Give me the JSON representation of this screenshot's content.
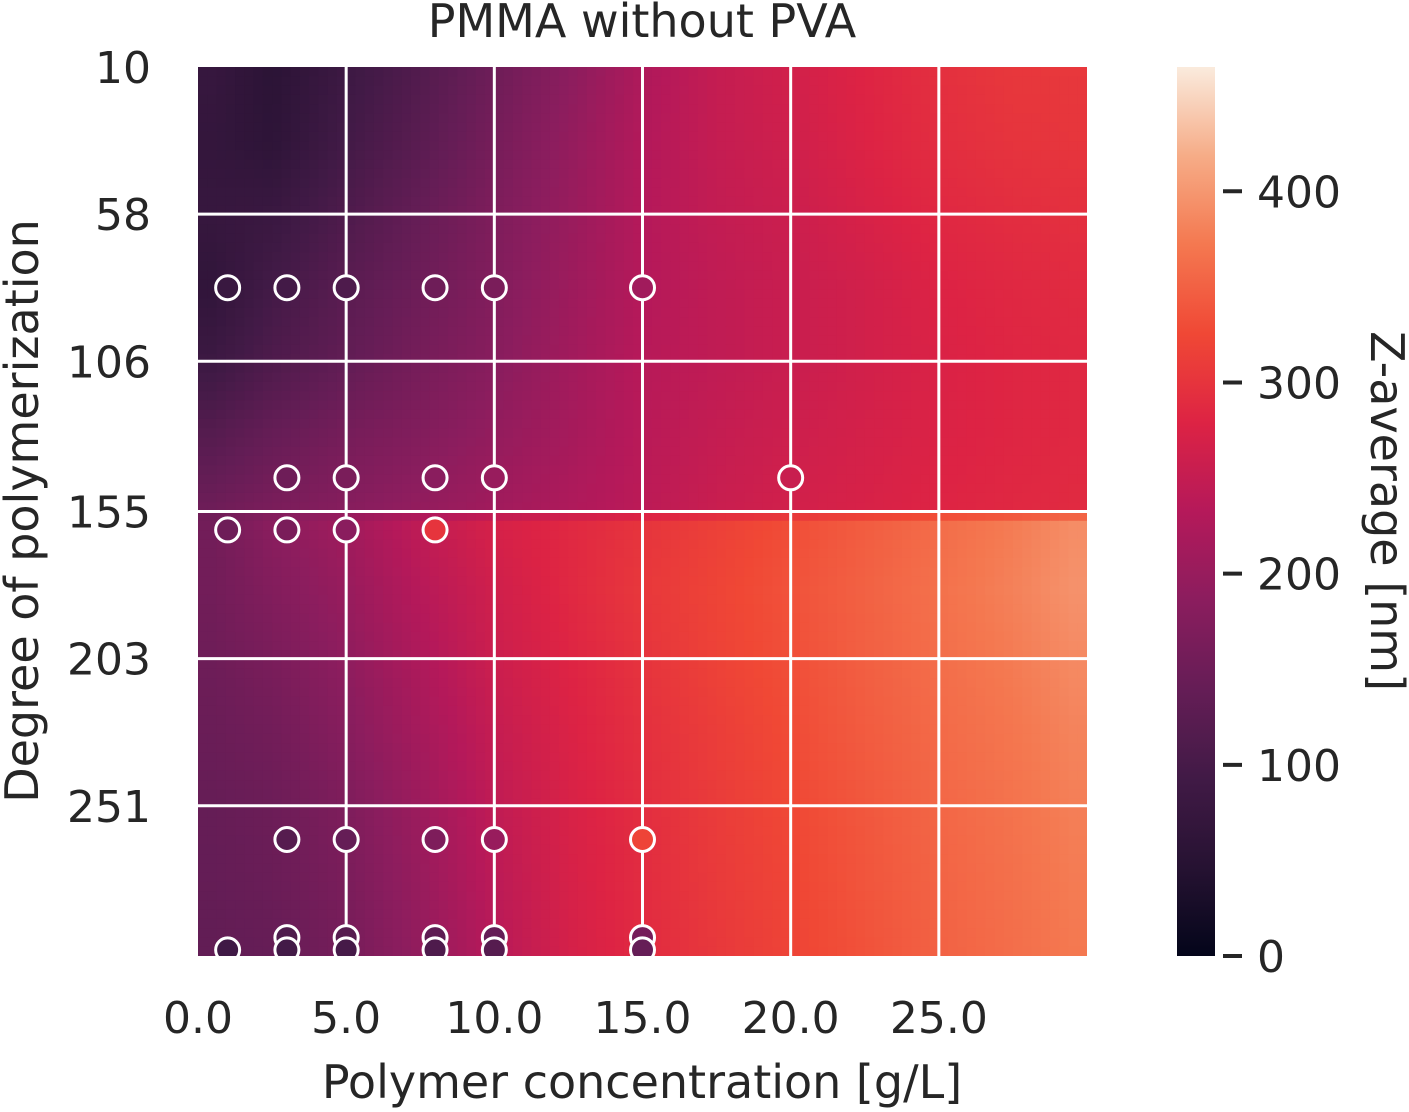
{
  "chart_data": {
    "type": "heatmap",
    "title": "PMMA without PVA",
    "xlabel": "Polymer concentration [g/L]",
    "ylabel": "Degree of polymerization",
    "colorbar_label": "Z-average [nm]",
    "colormap": "rocket",
    "xlim": [
      0,
      30
    ],
    "ylim": [
      10,
      300
    ],
    "y_inverted": true,
    "grid": true,
    "x_ticks": [
      0.0,
      5.0,
      10.0,
      15.0,
      20.0,
      25.0
    ],
    "x_tick_labels": [
      "0.0",
      "5.0",
      "10.0",
      "15.0",
      "20.0",
      "25.0"
    ],
    "y_ticks": [
      10,
      58,
      106,
      155,
      203,
      251
    ],
    "y_tick_labels": [
      "10",
      "58",
      "106",
      "155",
      "203",
      "251"
    ],
    "colorbar_range": [
      0,
      465
    ],
    "colorbar_ticks": [
      0,
      100,
      200,
      300,
      400
    ],
    "colorbar_tick_labels": [
      "0",
      "100",
      "200",
      "300",
      "400"
    ],
    "heatmap": {
      "x": [
        0.5,
        2.5,
        5.0,
        7.5,
        10.0,
        12.5,
        15.0,
        17.5,
        20.0,
        22.5,
        25.0,
        27.5,
        29.5
      ],
      "y": [
        10,
        35,
        58,
        82,
        106,
        130,
        154,
        158,
        180,
        203,
        227,
        251,
        275,
        300
      ],
      "z": [
        [
          75,
          55,
          85,
          115,
          150,
          185,
          225,
          250,
          265,
          280,
          295,
          305,
          305
        ],
        [
          70,
          60,
          95,
          125,
          160,
          195,
          230,
          250,
          262,
          278,
          292,
          300,
          302
        ],
        [
          75,
          80,
          110,
          140,
          170,
          200,
          232,
          248,
          258,
          272,
          285,
          292,
          295
        ],
        [
          65,
          95,
          125,
          150,
          175,
          205,
          232,
          245,
          255,
          265,
          278,
          285,
          288
        ],
        [
          85,
          110,
          135,
          160,
          182,
          210,
          235,
          245,
          255,
          265,
          275,
          282,
          285
        ],
        [
          120,
          140,
          160,
          175,
          195,
          215,
          237,
          250,
          260,
          268,
          276,
          282,
          285
        ],
        [
          150,
          165,
          180,
          195,
          210,
          225,
          240,
          255,
          265,
          272,
          280,
          285,
          288
        ],
        [
          155,
          185,
          210,
          245,
          270,
          285,
          300,
          315,
          330,
          345,
          360,
          375,
          390
        ],
        [
          155,
          175,
          200,
          235,
          262,
          285,
          305,
          320,
          335,
          350,
          365,
          380,
          395
        ],
        [
          150,
          165,
          190,
          225,
          258,
          280,
          300,
          318,
          332,
          348,
          362,
          375,
          388
        ],
        [
          145,
          155,
          180,
          215,
          250,
          275,
          295,
          312,
          328,
          344,
          358,
          370,
          382
        ],
        [
          140,
          148,
          170,
          205,
          245,
          272,
          292,
          310,
          325,
          340,
          355,
          367,
          378
        ],
        [
          138,
          145,
          165,
          200,
          240,
          270,
          290,
          308,
          322,
          338,
          352,
          364,
          375
        ],
        [
          135,
          140,
          160,
          195,
          235,
          268,
          288,
          305,
          320,
          335,
          350,
          362,
          372
        ]
      ]
    },
    "points": [
      {
        "x": 1.0,
        "y": 82,
        "z": 80
      },
      {
        "x": 3.0,
        "y": 82,
        "z": 95
      },
      {
        "x": 5.0,
        "y": 82,
        "z": 110
      },
      {
        "x": 8.0,
        "y": 82,
        "z": 150
      },
      {
        "x": 10.0,
        "y": 82,
        "z": 165
      },
      {
        "x": 15.0,
        "y": 82,
        "z": 210
      },
      {
        "x": 3.0,
        "y": 144,
        "z": 150
      },
      {
        "x": 5.0,
        "y": 144,
        "z": 165
      },
      {
        "x": 8.0,
        "y": 144,
        "z": 185
      },
      {
        "x": 10.0,
        "y": 144,
        "z": 200
      },
      {
        "x": 20.0,
        "y": 144,
        "z": 255
      },
      {
        "x": 1.0,
        "y": 161,
        "z": 150
      },
      {
        "x": 3.0,
        "y": 161,
        "z": 165
      },
      {
        "x": 5.0,
        "y": 161,
        "z": 185
      },
      {
        "x": 8.0,
        "y": 161,
        "z": 300
      },
      {
        "x": 3.0,
        "y": 262,
        "z": 120
      },
      {
        "x": 5.0,
        "y": 262,
        "z": 140
      },
      {
        "x": 8.0,
        "y": 262,
        "z": 170
      },
      {
        "x": 10.0,
        "y": 262,
        "z": 200
      },
      {
        "x": 15.0,
        "y": 262,
        "z": 320
      },
      {
        "x": 3.0,
        "y": 294,
        "z": 110
      },
      {
        "x": 5.0,
        "y": 294,
        "z": 120
      },
      {
        "x": 8.0,
        "y": 294,
        "z": 130
      },
      {
        "x": 10.0,
        "y": 294,
        "z": 140
      },
      {
        "x": 15.0,
        "y": 294,
        "z": 160
      },
      {
        "x": 1.0,
        "y": 298,
        "z": 90
      },
      {
        "x": 3.0,
        "y": 298,
        "z": 95
      },
      {
        "x": 5.0,
        "y": 298,
        "z": 100
      },
      {
        "x": 8.0,
        "y": 298,
        "z": 110
      },
      {
        "x": 10.0,
        "y": 298,
        "z": 120
      },
      {
        "x": 15.0,
        "y": 298,
        "z": 140
      }
    ]
  }
}
